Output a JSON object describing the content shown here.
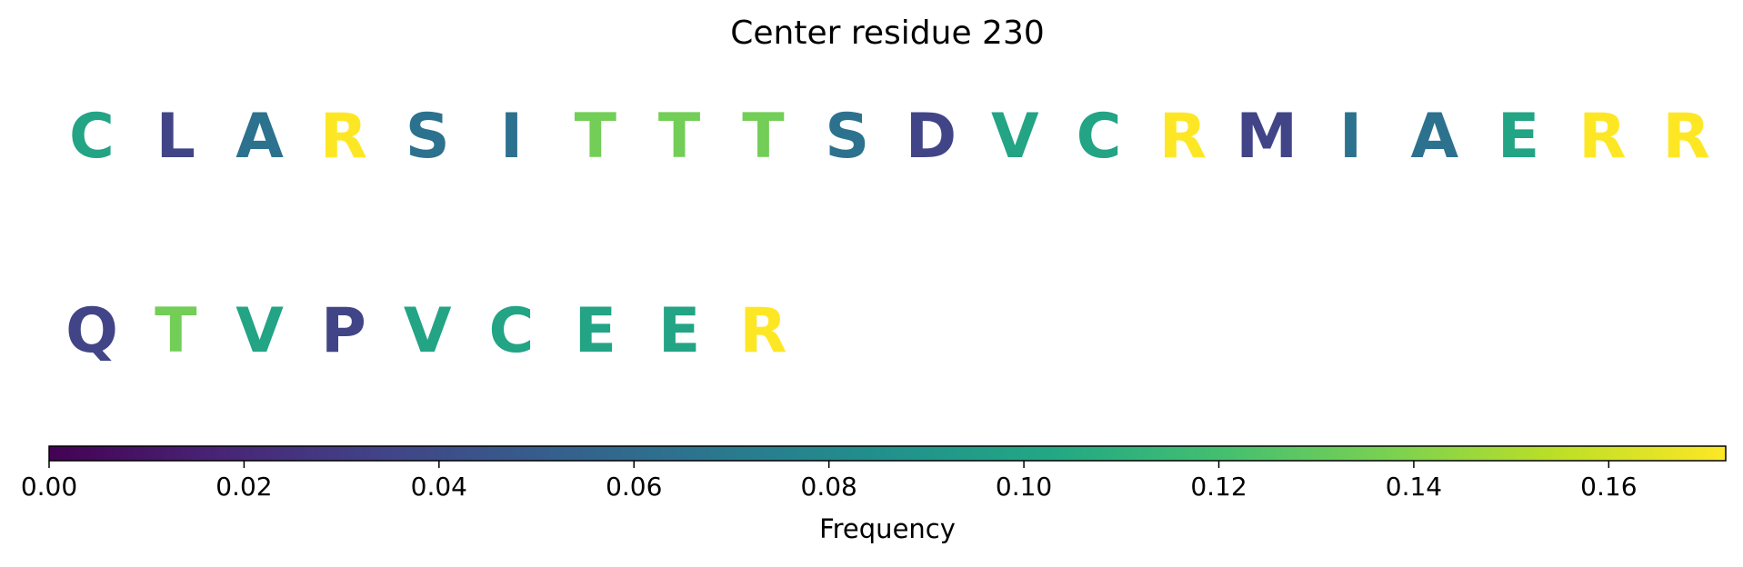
{
  "chart_data": {
    "type": "heatmap",
    "title": "Center residue 230",
    "colorbar": {
      "label": "Frequency",
      "colormap": "viridis",
      "range": [
        0,
        0.172
      ],
      "ticks": [
        "0.00",
        "0.02",
        "0.04",
        "0.06",
        "0.08",
        "0.10",
        "0.12",
        "0.14",
        "0.16"
      ],
      "tick_values": [
        0,
        0.02,
        0.04,
        0.06,
        0.08,
        0.1,
        0.12,
        0.14,
        0.16
      ],
      "orientation": "horizontal"
    },
    "residues_per_row": 20,
    "residues": [
      {
        "letter": "C",
        "frequency": 0.1
      },
      {
        "letter": "L",
        "frequency": 0.035
      },
      {
        "letter": "A",
        "frequency": 0.065
      },
      {
        "letter": "R",
        "frequency": 0.172
      },
      {
        "letter": "S",
        "frequency": 0.065
      },
      {
        "letter": "I",
        "frequency": 0.065
      },
      {
        "letter": "T",
        "frequency": 0.135
      },
      {
        "letter": "T",
        "frequency": 0.135
      },
      {
        "letter": "T",
        "frequency": 0.135
      },
      {
        "letter": "S",
        "frequency": 0.065
      },
      {
        "letter": "D",
        "frequency": 0.035
      },
      {
        "letter": "V",
        "frequency": 0.1
      },
      {
        "letter": "C",
        "frequency": 0.1
      },
      {
        "letter": "R",
        "frequency": 0.172
      },
      {
        "letter": "M",
        "frequency": 0.035
      },
      {
        "letter": "I",
        "frequency": 0.065
      },
      {
        "letter": "A",
        "frequency": 0.065
      },
      {
        "letter": "E",
        "frequency": 0.1
      },
      {
        "letter": "R",
        "frequency": 0.172
      },
      {
        "letter": "R",
        "frequency": 0.172
      },
      {
        "letter": "Q",
        "frequency": 0.035
      },
      {
        "letter": "T",
        "frequency": 0.135
      },
      {
        "letter": "V",
        "frequency": 0.1
      },
      {
        "letter": "P",
        "frequency": 0.035
      },
      {
        "letter": "V",
        "frequency": 0.1
      },
      {
        "letter": "C",
        "frequency": 0.1
      },
      {
        "letter": "E",
        "frequency": 0.1
      },
      {
        "letter": "E",
        "frequency": 0.1
      },
      {
        "letter": "R",
        "frequency": 0.172
      }
    ]
  }
}
